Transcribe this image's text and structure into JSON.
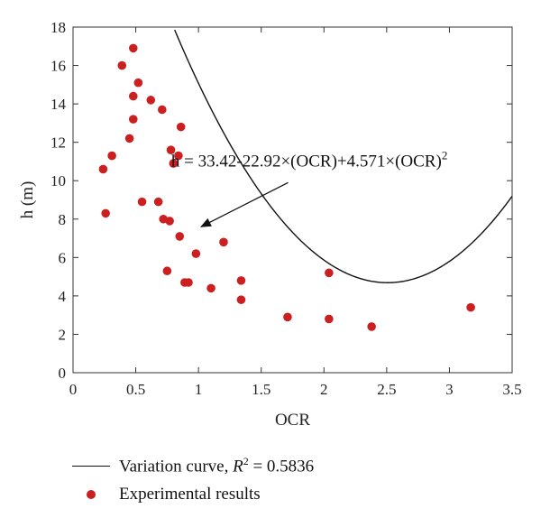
{
  "chart_data": {
    "type": "scatter",
    "xlabel": "OCR",
    "ylabel": "h (m)",
    "xlim": [
      0,
      3.5
    ],
    "ylim": [
      0,
      18
    ],
    "x_ticks": [
      "0",
      "0.5",
      "1",
      "1.5",
      "2",
      "2.5",
      "3",
      "3.5"
    ],
    "y_ticks": [
      "0",
      "2",
      "4",
      "6",
      "8",
      "10",
      "12",
      "14",
      "16",
      "18"
    ],
    "grid": false,
    "legend_position": "bottom",
    "series": [
      {
        "name": "Variation curve, R2 = 0.5836",
        "kind": "line",
        "equation": {
          "a": 33.42,
          "b": -22.92,
          "c": 4.571
        },
        "color": "#111111"
      },
      {
        "name": "Experimental results",
        "kind": "scatter",
        "color": "#cc1f1f",
        "points": [
          [
            0.24,
            10.6
          ],
          [
            0.26,
            8.3
          ],
          [
            0.31,
            11.3
          ],
          [
            0.39,
            16.0
          ],
          [
            0.45,
            12.2
          ],
          [
            0.48,
            16.9
          ],
          [
            0.48,
            14.4
          ],
          [
            0.48,
            13.2
          ],
          [
            0.52,
            15.1
          ],
          [
            0.55,
            8.9
          ],
          [
            0.62,
            14.2
          ],
          [
            0.68,
            8.9
          ],
          [
            0.71,
            13.7
          ],
          [
            0.72,
            8.0
          ],
          [
            0.75,
            5.3
          ],
          [
            0.77,
            7.9
          ],
          [
            0.78,
            11.6
          ],
          [
            0.8,
            10.9
          ],
          [
            0.84,
            11.3
          ],
          [
            0.85,
            7.1
          ],
          [
            0.86,
            12.8
          ],
          [
            0.89,
            4.7
          ],
          [
            0.92,
            4.7
          ],
          [
            0.98,
            6.2
          ],
          [
            1.1,
            4.4
          ],
          [
            1.2,
            6.8
          ],
          [
            1.34,
            4.8
          ],
          [
            1.34,
            3.8
          ],
          [
            1.71,
            2.9
          ],
          [
            2.04,
            2.8
          ],
          [
            2.04,
            5.2
          ],
          [
            2.38,
            2.4
          ],
          [
            3.17,
            3.4
          ]
        ]
      }
    ],
    "annotation": {
      "text": "h = 33.42-22.92×(OCR)+4.571×(OCR)",
      "superscript": "2",
      "arrow_to": [
        1.02,
        7.6
      ]
    }
  },
  "legend": {
    "curve_label_pre": "Variation curve, ",
    "curve_label_r": "R",
    "curve_label_sup": "2",
    "curve_label_post": " = 0.5836",
    "points_label": "Experimental results"
  }
}
